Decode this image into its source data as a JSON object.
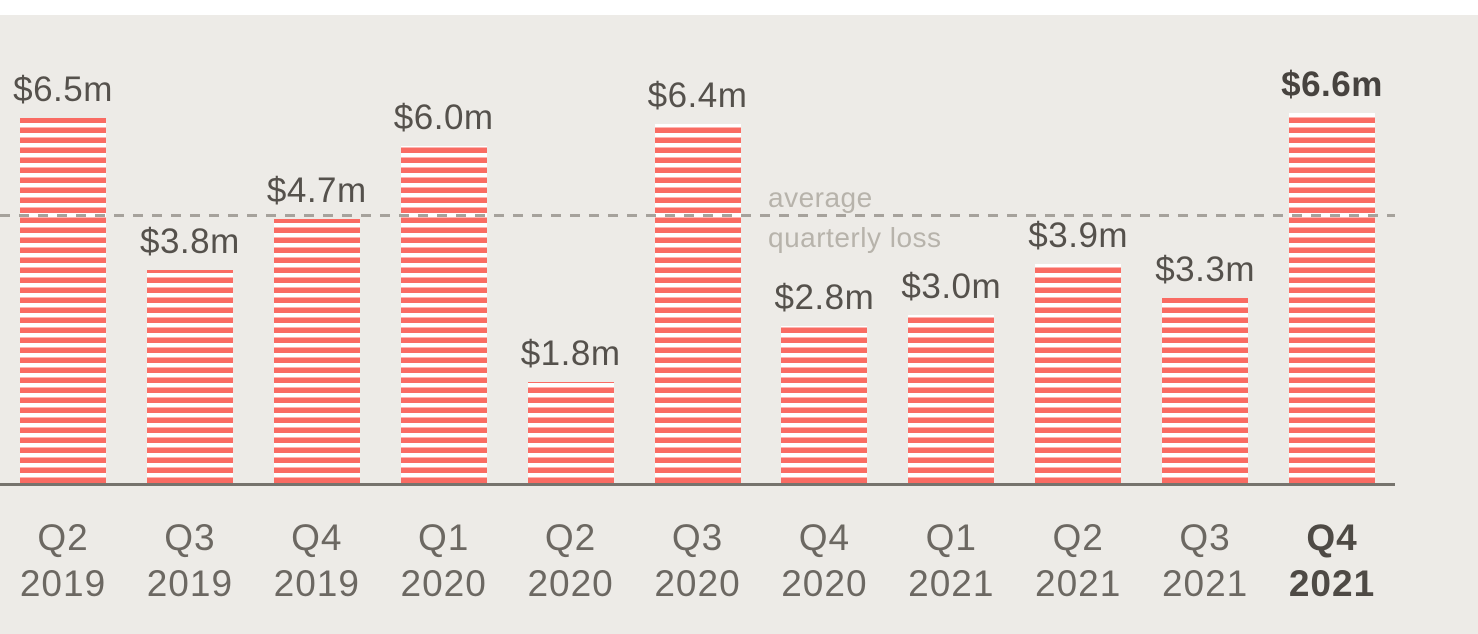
{
  "chart_data": {
    "type": "bar",
    "title": "",
    "unit": "$m (quarterly loss)",
    "ylim": [
      0,
      7
    ],
    "grid": false,
    "bars": [
      {
        "quarter": "Q2",
        "year": "2019",
        "value": 6.5,
        "label": "$6.5m",
        "bold": false
      },
      {
        "quarter": "Q3",
        "year": "2019",
        "value": 3.8,
        "label": "$3.8m",
        "bold": false
      },
      {
        "quarter": "Q4",
        "year": "2019",
        "value": 4.7,
        "label": "$4.7m",
        "bold": false
      },
      {
        "quarter": "Q1",
        "year": "2020",
        "value": 6.0,
        "label": "$6.0m",
        "bold": false
      },
      {
        "quarter": "Q2",
        "year": "2020",
        "value": 1.8,
        "label": "$1.8m",
        "bold": false
      },
      {
        "quarter": "Q3",
        "year": "2020",
        "value": 6.4,
        "label": "$6.4m",
        "bold": false
      },
      {
        "quarter": "Q4",
        "year": "2020",
        "value": 2.8,
        "label": "$2.8m",
        "bold": false
      },
      {
        "quarter": "Q1",
        "year": "2021",
        "value": 3.0,
        "label": "$3.0m",
        "bold": false
      },
      {
        "quarter": "Q2",
        "year": "2021",
        "value": 3.9,
        "label": "$3.9m",
        "bold": false
      },
      {
        "quarter": "Q3",
        "year": "2021",
        "value": 3.3,
        "label": "$3.3m",
        "bold": false
      },
      {
        "quarter": "Q4",
        "year": "2021",
        "value": 6.6,
        "label": "$6.6m",
        "bold": true
      }
    ],
    "average_line": {
      "value": 4.8,
      "label_line1": "average",
      "label_line2": "quarterly loss"
    },
    "colors": {
      "bar_stripe_red": "#f96b63",
      "bar_stripe_white": "#ffffff",
      "background": "#edebe7",
      "top_strip": "#ffffff",
      "value_label": "#55514c",
      "value_label_bold": "#47433f",
      "axis_label": "#6c6862",
      "axis_label_bold": "#4e4a45",
      "annotation": "#b7b3ab",
      "dashed_line": "#a6a29c",
      "baseline": "#76736d"
    }
  }
}
